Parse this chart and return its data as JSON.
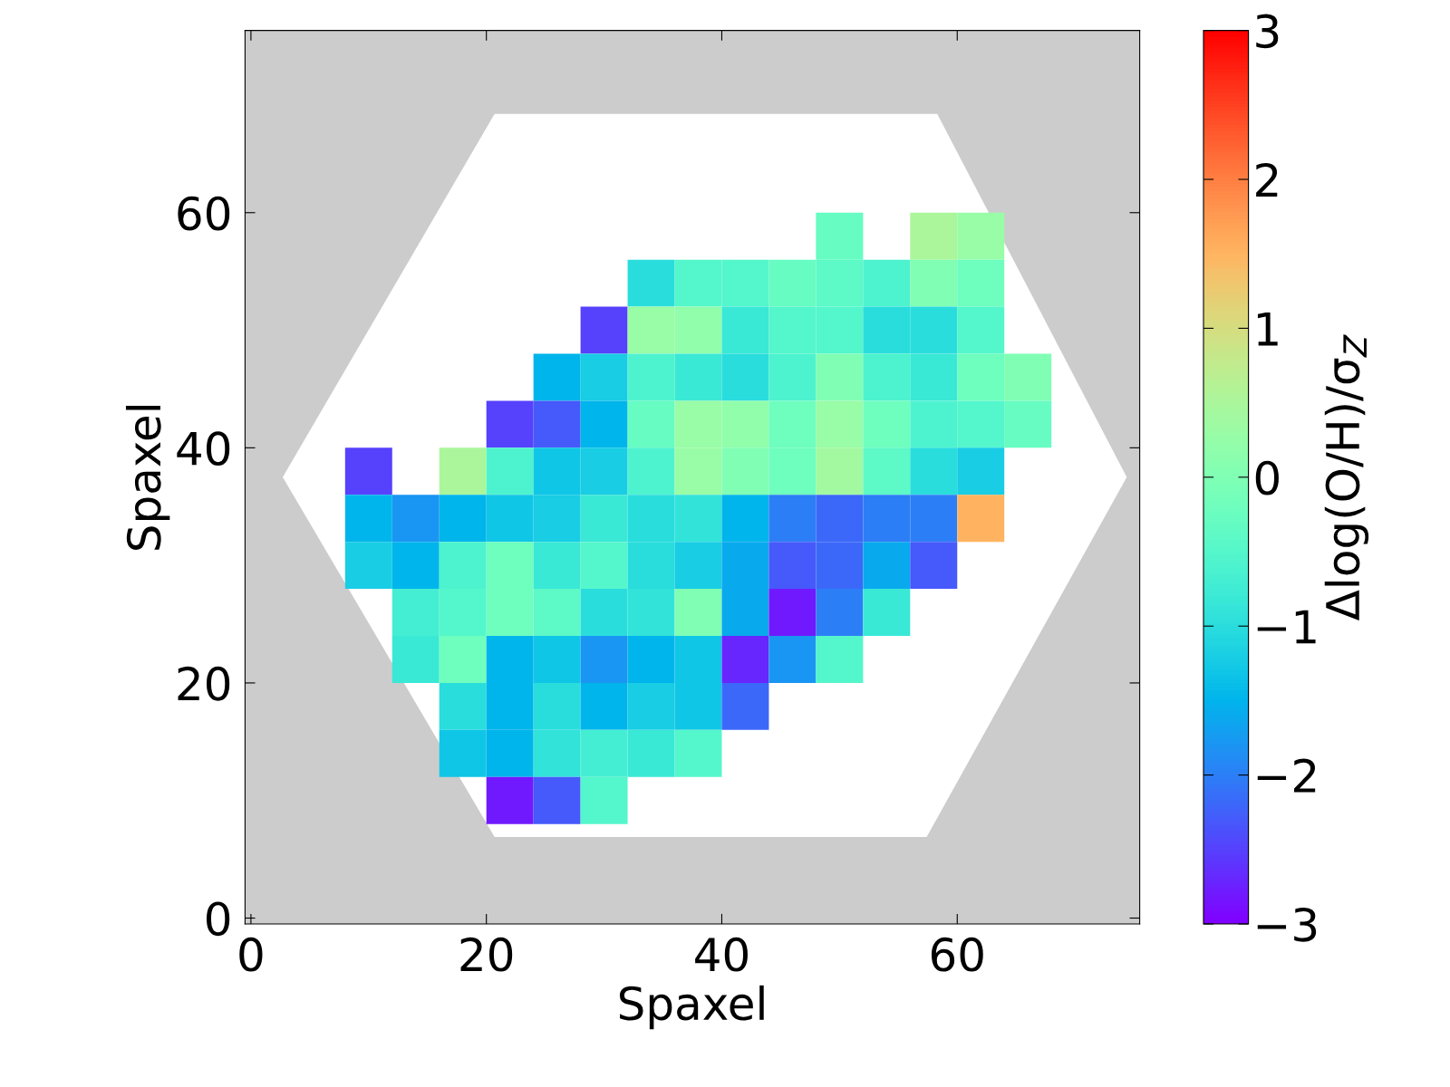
{
  "chart_data": {
    "type": "heatmap",
    "xlabel": "Spaxel",
    "ylabel": "Spaxel",
    "clabel": "Δlog(O/H)/σ$_{Z}$",
    "x": [
      10,
      14,
      18,
      22,
      26,
      30,
      34,
      38,
      42,
      46,
      50,
      54,
      58,
      62,
      66
    ],
    "y": [
      58,
      54,
      50,
      46,
      42,
      38,
      34,
      30,
      26,
      22,
      18,
      14,
      10
    ],
    "cells": [
      [
        null,
        null,
        null,
        null,
        null,
        null,
        null,
        null,
        null,
        null,
        -0.3,
        null,
        0.5,
        0.3,
        null
      ],
      [
        null,
        null,
        null,
        null,
        null,
        null,
        -1,
        -0.5,
        -0.5,
        -0.3,
        -0.4,
        -0.6,
        0,
        -0.2,
        null
      ],
      [
        null,
        null,
        null,
        null,
        null,
        -2.5,
        0.3,
        0.2,
        -0.8,
        -0.5,
        -0.5,
        -1,
        -1,
        -0.5,
        null
      ],
      [
        null,
        null,
        null,
        null,
        -1.5,
        -1.2,
        -0.6,
        -0.8,
        -1,
        -0.6,
        0,
        -0.6,
        -0.8,
        -0.2,
        0
      ],
      [
        null,
        null,
        null,
        -2.5,
        -2.3,
        -1.5,
        -0.3,
        0.3,
        0.2,
        -0.2,
        0.3,
        -0.2,
        -0.6,
        -0.5,
        -0.3
      ],
      [
        -2.5,
        null,
        0.5,
        -0.6,
        -1.3,
        -1.2,
        -0.6,
        0.3,
        0,
        -0.2,
        0.4,
        -0.4,
        -1,
        -1.2,
        null
      ],
      [
        -1.5,
        -1.8,
        -1.5,
        -1.3,
        -1.2,
        -0.8,
        -1,
        -0.9,
        -1.5,
        -2,
        -2.2,
        -2,
        -2,
        1.5,
        null
      ],
      [
        -1.2,
        -1.5,
        -0.6,
        -0.2,
        -0.8,
        -0.5,
        -1,
        -1.2,
        -1.6,
        -2.3,
        -2.2,
        -1.6,
        -2.3,
        null,
        null
      ],
      [
        null,
        -0.7,
        -0.5,
        -0.2,
        -0.4,
        -1,
        -0.9,
        0,
        -1.6,
        -2.8,
        -2,
        -0.8,
        null,
        null,
        null
      ],
      [
        null,
        -0.8,
        -0.2,
        -1.5,
        -1.3,
        -1.8,
        -1.5,
        -1.3,
        -2.7,
        -1.8,
        -0.5,
        null,
        null,
        null,
        null
      ],
      [
        null,
        null,
        -1,
        -1.5,
        -1,
        -1.5,
        -1.2,
        -1.3,
        -2.2,
        null,
        null,
        null,
        null,
        null,
        null
      ],
      [
        null,
        null,
        -1.3,
        -1.5,
        -0.9,
        -0.7,
        -0.8,
        -0.5,
        null,
        null,
        null,
        null,
        null,
        null,
        null
      ],
      [
        null,
        null,
        null,
        -2.8,
        -2.3,
        -0.5,
        null,
        null,
        null,
        null,
        null,
        null,
        null,
        null,
        null
      ]
    ],
    "xlim": [
      -0.5,
      75.5
    ],
    "ylim": [
      -0.5,
      75.5
    ],
    "xticks": [
      0,
      20,
      40,
      60
    ],
    "yticks": [
      0,
      20,
      40,
      60
    ],
    "clim": [
      -3,
      3
    ],
    "cticks": [
      -3,
      -2,
      -1,
      0,
      1,
      2,
      3
    ],
    "grid": false
  }
}
